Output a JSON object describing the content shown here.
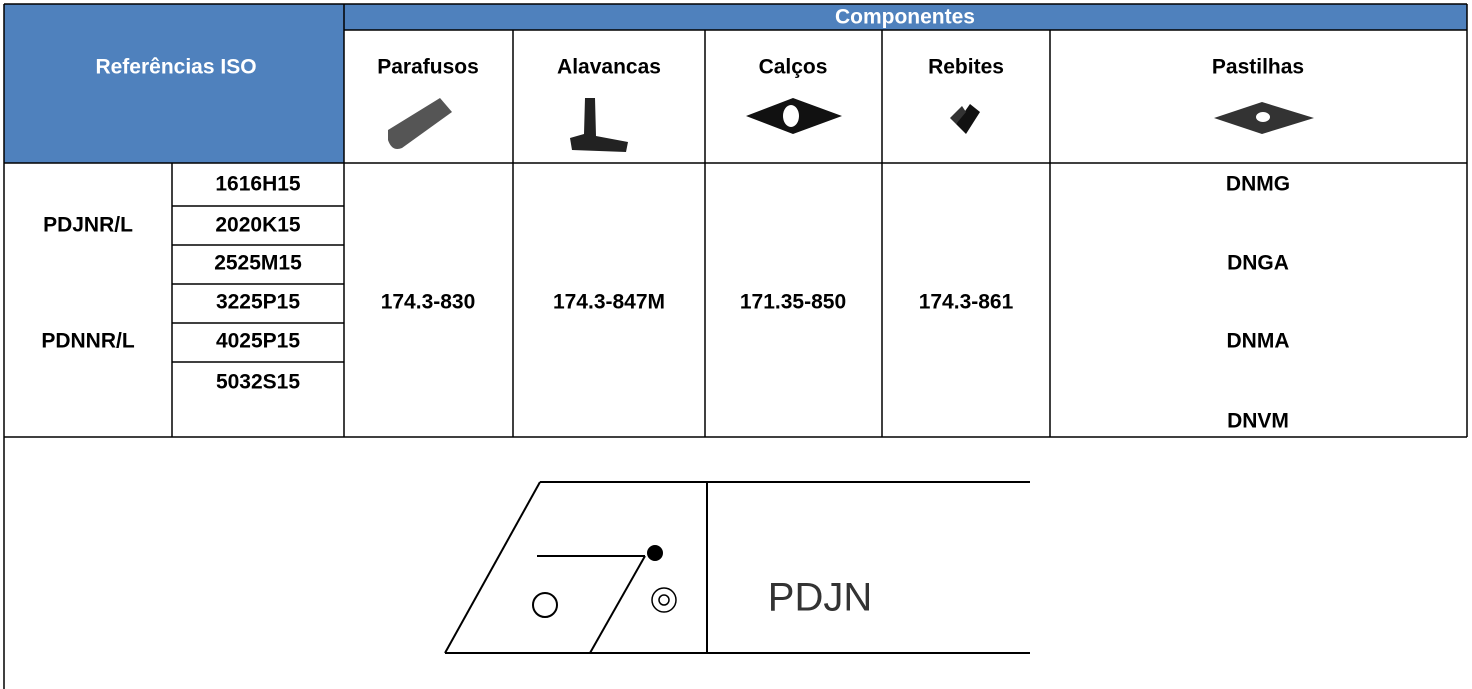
{
  "header": {
    "title": "Referências ISO",
    "group": "Componentes",
    "columns": [
      "Parafusos",
      "Alavancas",
      "Calços",
      "Rebites",
      "Pastilhas"
    ]
  },
  "body": {
    "models": [
      "PDJNR/L",
      "PDNNR/L"
    ],
    "sizes": [
      "1616H15",
      "2020K15",
      "2525M15",
      "3225P15",
      "4025P15",
      "5032S15"
    ],
    "parts": [
      "174.3-830",
      "174.3-847M",
      "171.35-850",
      "174.3-861"
    ],
    "inserts": [
      "DNMG",
      "DNGA",
      "DNMA",
      "DNVM"
    ]
  },
  "drawing": {
    "label": "PDJN"
  }
}
